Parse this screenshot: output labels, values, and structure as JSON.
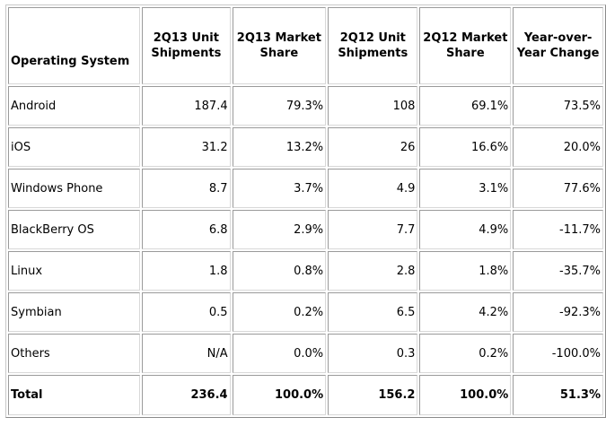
{
  "table": {
    "headers": [
      [
        "Operating System"
      ],
      [
        "2Q13 Unit",
        "Shipments"
      ],
      [
        "2Q13 Market",
        "Share"
      ],
      [
        "2Q12 Unit",
        "Shipments"
      ],
      [
        "2Q12 Market",
        "Share"
      ],
      [
        "Year-over-",
        "Year Change"
      ]
    ],
    "rows": [
      [
        "Android",
        "187.4",
        "79.3%",
        "108",
        "69.1%",
        "73.5%"
      ],
      [
        "iOS",
        "31.2",
        "13.2%",
        "26",
        "16.6%",
        "20.0%"
      ],
      [
        "Windows Phone",
        "8.7",
        "3.7%",
        "4.9",
        "3.1%",
        "77.6%"
      ],
      [
        "BlackBerry OS",
        "6.8",
        "2.9%",
        "7.7",
        "4.9%",
        "-11.7%"
      ],
      [
        "Linux",
        "1.8",
        "0.8%",
        "2.8",
        "1.8%",
        "-35.7%"
      ],
      [
        "Symbian",
        "0.5",
        "0.2%",
        "6.5",
        "4.2%",
        "-92.3%"
      ],
      [
        "Others",
        "N/A",
        "0.0%",
        "0.3",
        "0.2%",
        "-100.0%"
      ],
      [
        "Total",
        "236.4",
        "100.0%",
        "156.2",
        "100.0%",
        "51.3%"
      ]
    ]
  }
}
